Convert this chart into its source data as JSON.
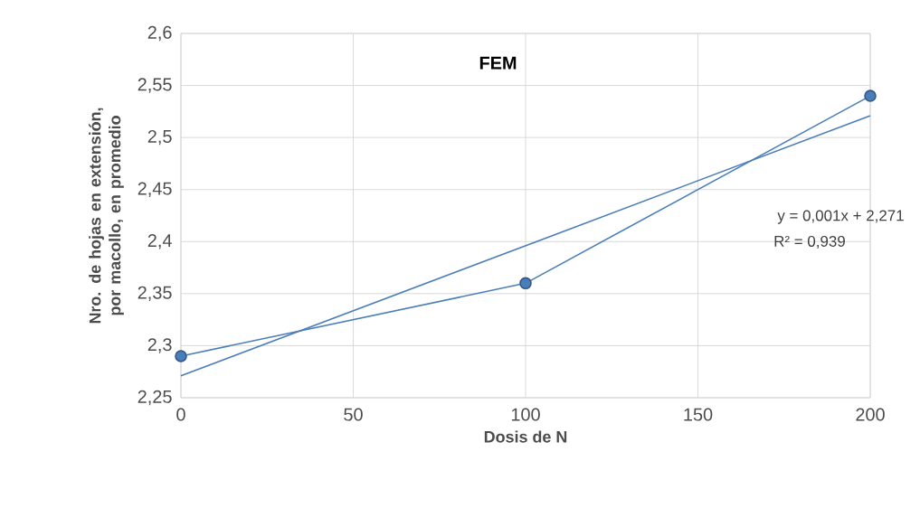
{
  "chart_data": {
    "type": "line",
    "title": "FEM",
    "xlabel": "Dosis de N",
    "ylabel": "Nro. de hojas en extensión, por macollo, en promedio",
    "x": [
      0,
      100,
      200
    ],
    "series": [
      {
        "color": "#4a7ebb",
        "values": [
          2.29,
          2.36,
          2.54
        ],
        "marker": "circle"
      },
      {
        "type": "line",
        "x": [
          0,
          200
        ],
        "color": "#4a7ebb",
        "values": [
          2.271,
          2.521
        ],
        "marker": "none"
      }
    ],
    "annotations": [
      "y = 0,001x + 2,271",
      "R² = 0,939"
    ],
    "xlim": [
      0,
      200
    ],
    "ylim": [
      2.25,
      2.6
    ],
    "xticks": [
      0,
      50,
      100,
      150,
      200
    ],
    "yticks": [
      {
        "value": 2.25,
        "label": "2,25"
      },
      {
        "value": 2.3,
        "label": "2,3"
      },
      {
        "value": 2.35,
        "label": "2,35"
      },
      {
        "value": 2.4,
        "label": "2,4"
      },
      {
        "value": 2.45,
        "label": "2,45"
      },
      {
        "value": 2.5,
        "label": "2,5"
      },
      {
        "value": 2.55,
        "label": "2,55"
      },
      {
        "value": 2.6,
        "label": "2,6"
      }
    ],
    "grid": true
  }
}
